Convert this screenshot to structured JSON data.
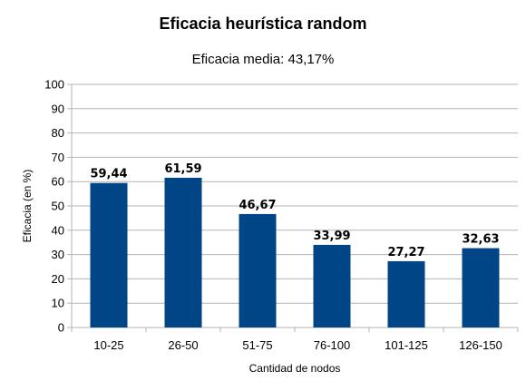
{
  "chart_data": {
    "type": "bar",
    "title": "Eficacia heurística random",
    "subtitle": "Eficacia media: 43,17%",
    "xlabel": "Cantidad de nodos",
    "ylabel": "Eficacia (en %)",
    "categories": [
      "10-25",
      "26-50",
      "51-75",
      "76-100",
      "101-125",
      "126-150"
    ],
    "values": [
      59.44,
      61.59,
      46.67,
      33.99,
      27.27,
      32.63
    ],
    "data_labels": [
      "59,44",
      "61,59",
      "46,67",
      "33,99",
      "27,27",
      "32,63"
    ],
    "ylim": [
      0,
      100
    ],
    "yticks": [
      0,
      10,
      20,
      30,
      40,
      50,
      60,
      70,
      80,
      90,
      100
    ],
    "grid": true,
    "legend": "none",
    "bar_color": "#004586"
  }
}
